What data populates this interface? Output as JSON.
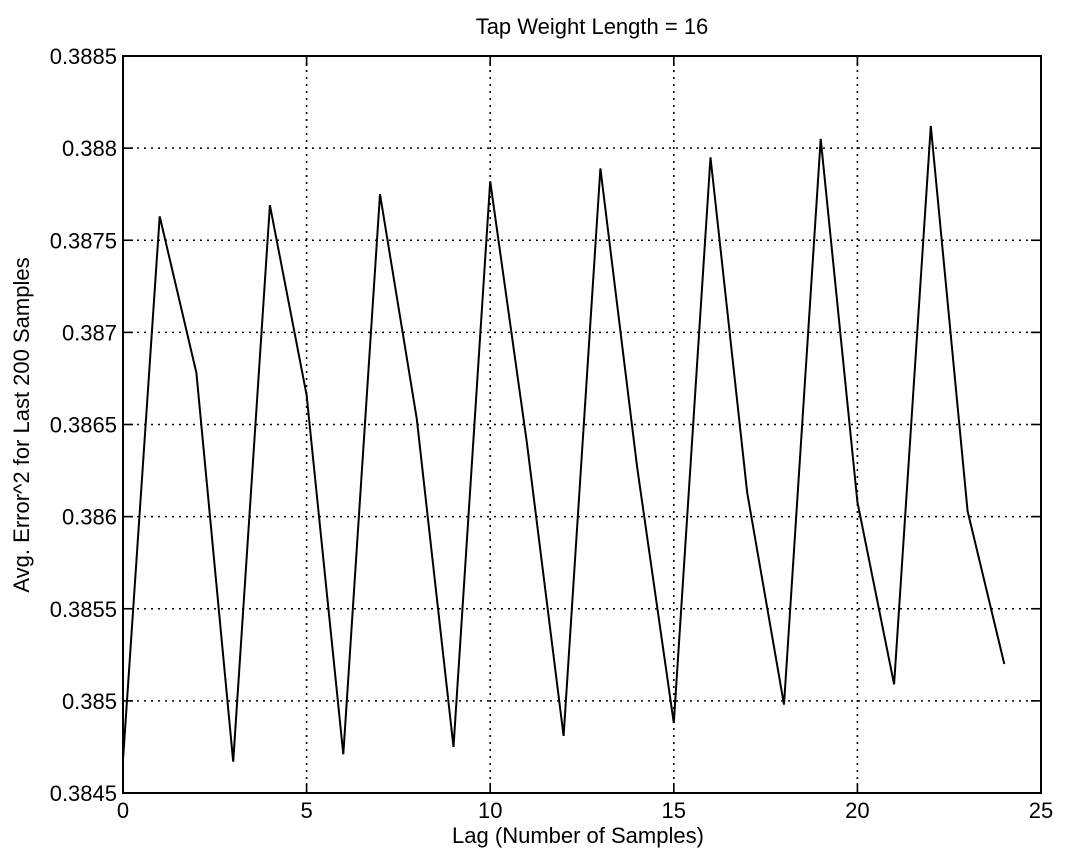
{
  "chart_data": {
    "type": "line",
    "title": "Tap Weight Length = 16",
    "xlabel": "Lag (Number of Samples)",
    "ylabel": "Avg. Error^2 for Last 200 Samples",
    "xlim": [
      0,
      25
    ],
    "ylim": [
      0.3845,
      0.3885
    ],
    "x_ticks": [
      0,
      5,
      10,
      15,
      20,
      25
    ],
    "x_tick_labels": [
      "0",
      "5",
      "10",
      "15",
      "20",
      "25"
    ],
    "y_ticks": [
      0.3845,
      0.385,
      0.3855,
      0.386,
      0.3865,
      0.387,
      0.3875,
      0.388,
      0.3885
    ],
    "y_tick_labels": [
      "0.3845",
      "0.385",
      "0.3855",
      "0.386",
      "0.3865",
      "0.387",
      "0.3875",
      "0.388",
      "0.3885"
    ],
    "grid": true,
    "grid_style": "dotted",
    "series": [
      {
        "x": [
          0,
          1,
          2,
          3,
          4,
          5,
          6,
          7,
          8,
          9,
          10,
          11,
          12,
          13,
          14,
          15,
          16,
          17,
          18,
          19,
          20,
          21,
          22,
          23,
          24
        ],
        "y": [
          0.38468,
          0.38763,
          0.38678,
          0.38467,
          0.38769,
          0.38666,
          0.38471,
          0.38775,
          0.38653,
          0.38475,
          0.38782,
          0.3864,
          0.38481,
          0.38789,
          0.38627,
          0.38488,
          0.38795,
          0.38613,
          0.38498,
          0.38805,
          0.38608,
          0.38509,
          0.38812,
          0.38603,
          0.3852
        ],
        "color": "#000000"
      }
    ]
  }
}
